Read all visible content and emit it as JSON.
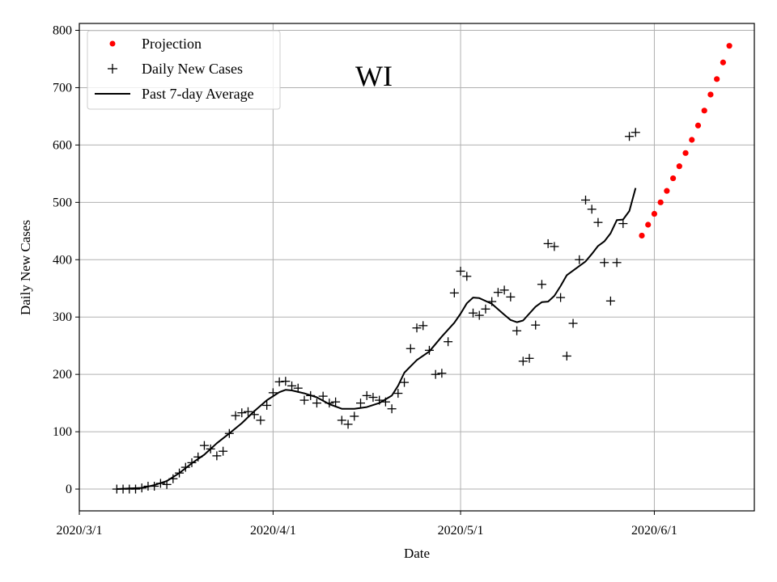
{
  "chart_data": {
    "type": "scatter",
    "title": "WI",
    "xlabel": "Date",
    "ylabel": "Daily New Cases",
    "x_unit": "days since 2020/3/1",
    "xlim": [
      0,
      108
    ],
    "ylim": [
      -38,
      812
    ],
    "x_ticks": [
      {
        "day": 0,
        "label": "2020/3/1"
      },
      {
        "day": 31,
        "label": "2020/4/1"
      },
      {
        "day": 61,
        "label": "2020/5/1"
      },
      {
        "day": 92,
        "label": "2020/6/1"
      }
    ],
    "y_ticks": [
      0,
      100,
      200,
      300,
      400,
      500,
      600,
      700,
      800
    ],
    "grid": true,
    "legend_position": "top-left",
    "legend": [
      {
        "name": "Projection",
        "marker": "dot",
        "color": "#ff0000"
      },
      {
        "name": "Daily New Cases",
        "marker": "plus",
        "color": "#000000"
      },
      {
        "name": "Past 7-day Average",
        "marker": "line",
        "color": "#000000"
      }
    ],
    "series": [
      {
        "name": "Daily New Cases",
        "style": "plus",
        "color": "#000000",
        "points": [
          [
            6,
            0
          ],
          [
            7,
            0
          ],
          [
            8,
            0
          ],
          [
            9,
            0
          ],
          [
            10,
            2
          ],
          [
            11,
            5
          ],
          [
            12,
            5
          ],
          [
            13,
            10
          ],
          [
            14,
            8
          ],
          [
            15,
            18
          ],
          [
            16,
            28
          ],
          [
            17,
            38
          ],
          [
            18,
            46
          ],
          [
            19,
            56
          ],
          [
            20,
            76
          ],
          [
            21,
            70
          ],
          [
            22,
            58
          ],
          [
            23,
            66
          ],
          [
            24,
            97
          ],
          [
            25,
            128
          ],
          [
            26,
            133
          ],
          [
            27,
            135
          ],
          [
            28,
            130
          ],
          [
            29,
            120
          ],
          [
            30,
            146
          ],
          [
            31,
            168
          ],
          [
            32,
            187
          ],
          [
            33,
            188
          ],
          [
            34,
            180
          ],
          [
            35,
            176
          ],
          [
            36,
            155
          ],
          [
            37,
            163
          ],
          [
            38,
            150
          ],
          [
            39,
            162
          ],
          [
            40,
            150
          ],
          [
            41,
            152
          ],
          [
            42,
            120
          ],
          [
            43,
            113
          ],
          [
            44,
            127
          ],
          [
            45,
            150
          ],
          [
            46,
            163
          ],
          [
            47,
            160
          ],
          [
            48,
            155
          ],
          [
            49,
            152
          ],
          [
            50,
            140
          ],
          [
            51,
            167
          ],
          [
            52,
            186
          ],
          [
            53,
            245
          ],
          [
            54,
            281
          ],
          [
            55,
            285
          ],
          [
            56,
            242
          ],
          [
            57,
            200
          ],
          [
            58,
            202
          ],
          [
            59,
            257
          ],
          [
            60,
            342
          ],
          [
            61,
            380
          ],
          [
            62,
            371
          ],
          [
            63,
            307
          ],
          [
            64,
            303
          ],
          [
            65,
            314
          ],
          [
            66,
            327
          ],
          [
            67,
            343
          ],
          [
            68,
            347
          ],
          [
            69,
            335
          ],
          [
            70,
            276
          ],
          [
            71,
            223
          ],
          [
            72,
            228
          ],
          [
            73,
            286
          ],
          [
            74,
            357
          ],
          [
            75,
            428
          ],
          [
            76,
            423
          ],
          [
            77,
            334
          ],
          [
            78,
            232
          ],
          [
            79,
            289
          ],
          [
            80,
            400
          ],
          [
            81,
            504
          ],
          [
            82,
            488
          ],
          [
            83,
            465
          ],
          [
            84,
            395
          ],
          [
            85,
            328
          ],
          [
            86,
            395
          ],
          [
            87,
            463
          ],
          [
            88,
            615
          ],
          [
            89,
            622
          ]
        ]
      },
      {
        "name": "Past 7-day Average",
        "style": "line",
        "color": "#000000",
        "points": [
          [
            6,
            0
          ],
          [
            8,
            1
          ],
          [
            10,
            2
          ],
          [
            12,
            7
          ],
          [
            14,
            14
          ],
          [
            16,
            28
          ],
          [
            18,
            45
          ],
          [
            20,
            60
          ],
          [
            22,
            80
          ],
          [
            24,
            97
          ],
          [
            26,
            115
          ],
          [
            28,
            136
          ],
          [
            30,
            155
          ],
          [
            32,
            169
          ],
          [
            33,
            173
          ],
          [
            34,
            172
          ],
          [
            36,
            167
          ],
          [
            38,
            160
          ],
          [
            40,
            148
          ],
          [
            42,
            140
          ],
          [
            44,
            140
          ],
          [
            46,
            143
          ],
          [
            48,
            150
          ],
          [
            50,
            163
          ],
          [
            51,
            180
          ],
          [
            52,
            203
          ],
          [
            54,
            225
          ],
          [
            56,
            240
          ],
          [
            58,
            266
          ],
          [
            59,
            278
          ],
          [
            60,
            290
          ],
          [
            61,
            306
          ],
          [
            62,
            324
          ],
          [
            63,
            334
          ],
          [
            64,
            333
          ],
          [
            66,
            323
          ],
          [
            68,
            304
          ],
          [
            69,
            295
          ],
          [
            70,
            291
          ],
          [
            71,
            294
          ],
          [
            73,
            318
          ],
          [
            74,
            326
          ],
          [
            75,
            327
          ],
          [
            76,
            337
          ],
          [
            77,
            354
          ],
          [
            78,
            373
          ],
          [
            80,
            389
          ],
          [
            81,
            397
          ],
          [
            82,
            410
          ],
          [
            83,
            424
          ],
          [
            84,
            432
          ],
          [
            85,
            446
          ],
          [
            86,
            469
          ],
          [
            87,
            470
          ],
          [
            88,
            485
          ],
          [
            89,
            525
          ]
        ]
      },
      {
        "name": "Projection",
        "style": "dot",
        "color": "#ff0000",
        "points": [
          [
            90,
            442
          ],
          [
            91,
            461
          ],
          [
            92,
            480
          ],
          [
            93,
            500
          ],
          [
            94,
            520
          ],
          [
            95,
            542
          ],
          [
            96,
            563
          ],
          [
            97,
            586
          ],
          [
            98,
            609
          ],
          [
            99,
            634
          ],
          [
            100,
            660
          ],
          [
            101,
            688
          ],
          [
            102,
            715
          ],
          [
            103,
            744
          ],
          [
            104,
            773
          ]
        ]
      }
    ]
  }
}
